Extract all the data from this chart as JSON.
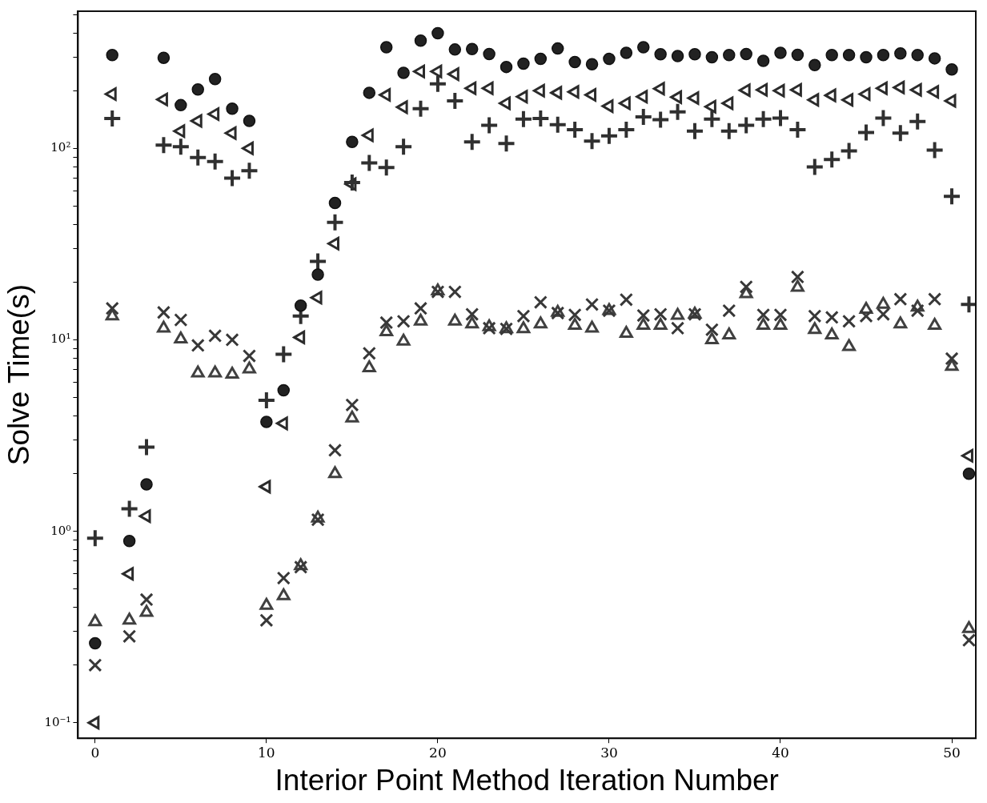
{
  "chart_data": {
    "type": "scatter",
    "xlabel": "Interior Point Method Iteration Number",
    "ylabel": "Solve Time(s)",
    "log": "y",
    "grid": false,
    "legend": false,
    "x": [
      0,
      1,
      2,
      3,
      4,
      5,
      6,
      7,
      8,
      9,
      10,
      11,
      12,
      13,
      14,
      15,
      16,
      17,
      18,
      19,
      20,
      21,
      22,
      23,
      24,
      25,
      26,
      27,
      28,
      29,
      30,
      31,
      32,
      33,
      34,
      35,
      36,
      37,
      38,
      39,
      40,
      41,
      42,
      43,
      44,
      45,
      46,
      47,
      48,
      49,
      50,
      51
    ],
    "xlim": [
      -1,
      51.4
    ],
    "xticks": [
      0,
      10,
      20,
      30,
      40,
      50
    ],
    "ylim": [
      0.083,
      520
    ],
    "yticks": [
      {
        "value": 0.1,
        "label": "10⁻¹"
      },
      {
        "value": 0.2,
        "label": null
      },
      {
        "value": 0.3,
        "label": null
      },
      {
        "value": 0.4,
        "label": null
      },
      {
        "value": 0.5,
        "label": null
      },
      {
        "value": 0.6,
        "label": null
      },
      {
        "value": 0.7,
        "label": null
      },
      {
        "value": 0.8,
        "label": null
      },
      {
        "value": 0.9,
        "label": null
      },
      {
        "value": 1,
        "label": "10⁰"
      },
      {
        "value": 2,
        "label": null
      },
      {
        "value": 3,
        "label": null
      },
      {
        "value": 4,
        "label": null
      },
      {
        "value": 5,
        "label": null
      },
      {
        "value": 6,
        "label": null
      },
      {
        "value": 7,
        "label": null
      },
      {
        "value": 8,
        "label": null
      },
      {
        "value": 9,
        "label": null
      },
      {
        "value": 10,
        "label": "10¹"
      },
      {
        "value": 20,
        "label": null
      },
      {
        "value": 30,
        "label": null
      },
      {
        "value": 40,
        "label": null
      },
      {
        "value": 50,
        "label": null
      },
      {
        "value": 60,
        "label": null
      },
      {
        "value": 70,
        "label": null
      },
      {
        "value": 80,
        "label": null
      },
      {
        "value": 90,
        "label": null
      },
      {
        "value": 100,
        "label": "10²"
      },
      {
        "value": 200,
        "label": null
      },
      {
        "value": 300,
        "label": null
      },
      {
        "value": 400,
        "label": null
      },
      {
        "value": 500,
        "label": null
      }
    ],
    "series": [
      {
        "marker": "circle",
        "color": "#222222",
        "values": [
          0.26,
          307,
          0.89,
          1.76,
          297,
          168,
          203,
          230,
          161,
          139,
          3.73,
          5.45,
          15.1,
          21.9,
          51.8,
          108,
          195,
          337,
          248,
          365,
          399,
          328,
          330,
          311,
          266,
          277,
          293,
          332,
          282,
          275,
          293,
          315,
          337,
          310,
          303,
          310,
          299,
          307,
          311,
          286,
          315,
          308,
          272,
          307,
          307,
          299,
          307,
          313,
          307,
          295,
          258,
          2.0
        ]
      },
      {
        "marker": "cross",
        "color": "#303030",
        "values": [
          0.92,
          143,
          1.31,
          2.75,
          104,
          102,
          89.5,
          85.3,
          69.8,
          76.3,
          4.83,
          8.4,
          13.3,
          25.7,
          41.1,
          66.2,
          84,
          79.3,
          102,
          161,
          217,
          177,
          108,
          132,
          106,
          142,
          143,
          133,
          125,
          109,
          116,
          125,
          146,
          141,
          155,
          123,
          142,
          123,
          132,
          142,
          144,
          125,
          80,
          87.3,
          96.9,
          121,
          144,
          120,
          138,
          97.8,
          56.1,
          15.3
        ]
      },
      {
        "marker": "triangle",
        "color": "#2b2b2b",
        "values": [
          0.1,
          192,
          0.6,
          1.2,
          180,
          123,
          139,
          151,
          120,
          100,
          1.71,
          3.66,
          10.3,
          16.6,
          31.8,
          65,
          117,
          190,
          164,
          252,
          252,
          244,
          206,
          206,
          172,
          186,
          200,
          195,
          197,
          190,
          166,
          172,
          186,
          205,
          185,
          183,
          165,
          172,
          201,
          202,
          200,
          202,
          179,
          189,
          179,
          192,
          206,
          208,
          202,
          197,
          177,
          2.48
        ]
      },
      {
        "marker": "x",
        "color": "#383838",
        "values": [
          0.2,
          14.6,
          0.283,
          0.44,
          13.9,
          12.7,
          9.35,
          10.5,
          10,
          8.24,
          0.343,
          0.57,
          0.65,
          1.15,
          2.65,
          4.57,
          8.5,
          12.3,
          12.5,
          14.6,
          17.8,
          17.8,
          13.6,
          11.5,
          11.4,
          13.3,
          15.7,
          13.8,
          13.5,
          15.3,
          14.2,
          16.2,
          13.4,
          13.6,
          11.5,
          13.6,
          11.3,
          14.2,
          18.9,
          13.5,
          13.5,
          21.3,
          13.3,
          13.1,
          12.5,
          13.3,
          13.6,
          16.3,
          14.2,
          16.3,
          7.98,
          0.27
        ]
      },
      {
        "marker": "triangle",
        "color": "#404040",
        "values": [
          0.337,
          13.3,
          0.343,
          0.377,
          11.5,
          10.1,
          6.7,
          6.7,
          6.6,
          7.03,
          0.41,
          0.46,
          0.66,
          1.17,
          2.0,
          3.9,
          7.14,
          11,
          9.82,
          12.5,
          18,
          12.5,
          12.1,
          11.7,
          11.4,
          11.4,
          12.1,
          13.9,
          11.9,
          11.5,
          14.2,
          10.8,
          11.9,
          11.9,
          13.4,
          13.6,
          10,
          10.6,
          17.4,
          11.9,
          11.9,
          18.8,
          11.3,
          10.6,
          9.21,
          14.4,
          15.3,
          12.1,
          14.8,
          11.9,
          7.26,
          0.31
        ]
      }
    ]
  }
}
